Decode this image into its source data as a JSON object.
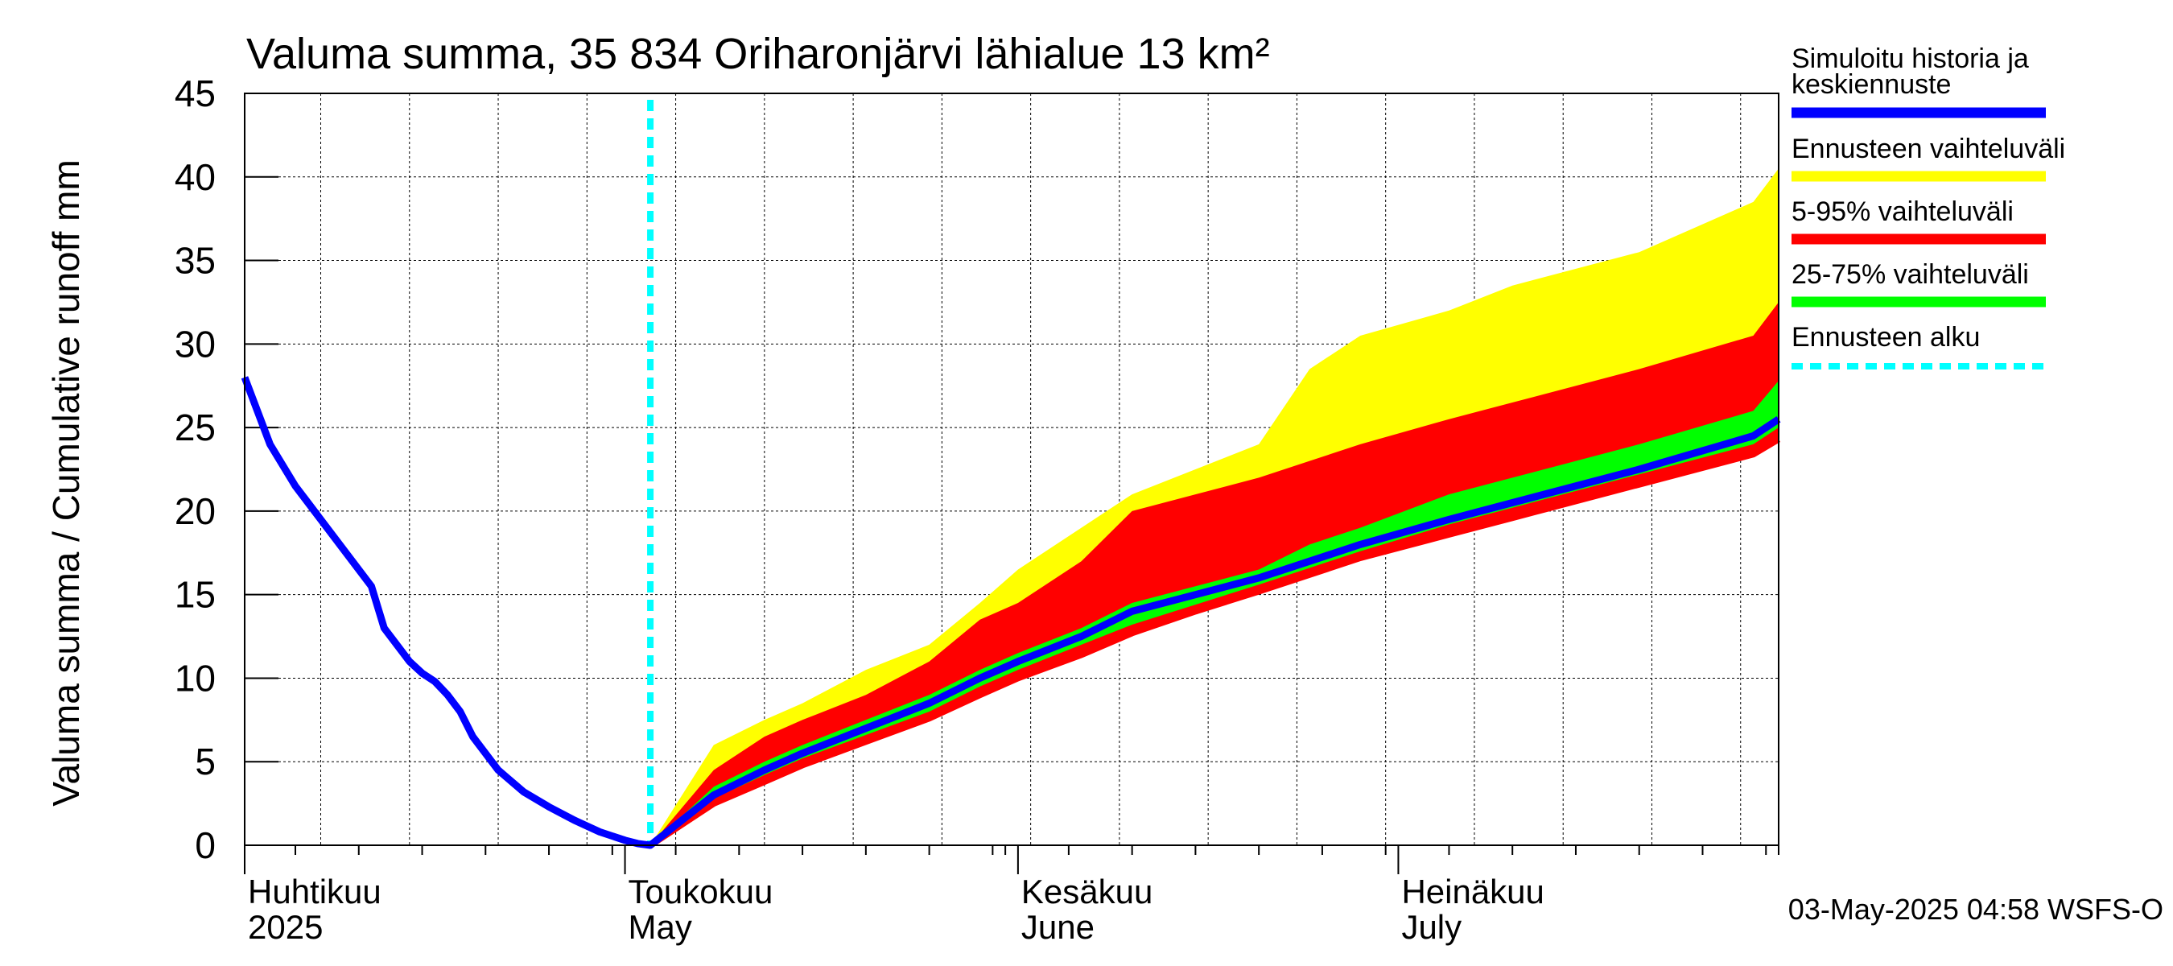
{
  "chart_data": {
    "type": "area",
    "title": "Valuma summa, 35 834 Oriharonjärvi lähialue 13 km²",
    "ylabel": "Valuma summa / Cumulative runoff     mm",
    "ylim": [
      0,
      45
    ],
    "yticks": [
      0,
      5,
      10,
      15,
      20,
      25,
      30,
      35,
      40,
      45
    ],
    "xlim": [
      "2025-04-01",
      "2025-07-31"
    ],
    "x_month_labels": [
      {
        "line1": "Huhtikuu",
        "line2": "2025",
        "date": "2025-04-01"
      },
      {
        "line1": "Toukokuu",
        "line2": "May",
        "date": "2025-05-01"
      },
      {
        "line1": "Kesäkuu",
        "line2": "June",
        "date": "2025-06-01"
      },
      {
        "line1": "Heinäkuu",
        "line2": "July",
        "date": "2025-07-01"
      }
    ],
    "grid": true,
    "forecast_start": "2025-05-03",
    "legend": [
      {
        "label": "Simuloitu historia ja keskiennuste",
        "line1": "Simuloitu historia ja",
        "line2": "keskiennuste",
        "color": "#0000ff",
        "style": "solid"
      },
      {
        "label": "Ennusteen vaihteluväli",
        "color": "#ffff00",
        "style": "solid"
      },
      {
        "label": "5-95% vaihteluväli",
        "color": "#ff0000",
        "style": "solid"
      },
      {
        "label": "25-75% vaihteluväli",
        "color": "#00ff00",
        "style": "solid"
      },
      {
        "label": "Ennusteen alku",
        "color": "#00ffff",
        "style": "dashed"
      }
    ],
    "history": {
      "name": "Simuloitu historia ja keskiennuste",
      "color": "#0000ff",
      "x": [
        "2025-04-01",
        "2025-04-03",
        "2025-04-05",
        "2025-04-07",
        "2025-04-09",
        "2025-04-11",
        "2025-04-12",
        "2025-04-14",
        "2025-04-15",
        "2025-04-16",
        "2025-04-17",
        "2025-04-18",
        "2025-04-19",
        "2025-04-21",
        "2025-04-23",
        "2025-04-25",
        "2025-04-27",
        "2025-04-29",
        "2025-05-01",
        "2025-05-02",
        "2025-05-03"
      ],
      "y": [
        28,
        24,
        21.5,
        19.5,
        17.5,
        15.5,
        13,
        11,
        10.3,
        9.8,
        9,
        8,
        6.5,
        4.5,
        3.2,
        2.3,
        1.5,
        0.8,
        0.3,
        0.1,
        0
      ]
    },
    "forecast": {
      "x": [
        "2025-05-03",
        "2025-05-08",
        "2025-05-12",
        "2025-05-15",
        "2025-05-20",
        "2025-05-25",
        "2025-05-29",
        "2025-06-01",
        "2025-06-06",
        "2025-06-10",
        "2025-06-15",
        "2025-06-20",
        "2025-06-24",
        "2025-06-28",
        "2025-07-05",
        "2025-07-10",
        "2025-07-20",
        "2025-07-29",
        "2025-07-31"
      ],
      "max": [
        0,
        6,
        7.5,
        8.5,
        10.5,
        12,
        14.5,
        16.5,
        19,
        21,
        22.5,
        24,
        28.5,
        30.5,
        32,
        33.5,
        35.5,
        38.5,
        40.5
      ],
      "p95": [
        0,
        4.5,
        6.5,
        7.5,
        9,
        11,
        13.5,
        14.5,
        17,
        20,
        21,
        22,
        23,
        24,
        25.5,
        26.5,
        28.5,
        30.5,
        32.5
      ],
      "p75": [
        0,
        3.5,
        5,
        6,
        7.5,
        9,
        10.5,
        11.5,
        13,
        14.5,
        15.5,
        16.5,
        18,
        19,
        21,
        22,
        24,
        26,
        27.8
      ],
      "median": [
        0,
        3,
        4.5,
        5.5,
        7,
        8.5,
        10,
        11,
        12.5,
        14,
        15,
        16,
        17,
        18,
        19.5,
        20.5,
        22.5,
        24.5,
        25.5
      ],
      "p25": [
        0,
        2.8,
        4.2,
        5.2,
        6.6,
        8,
        9.5,
        10.5,
        12,
        13.2,
        14.4,
        15.6,
        16.6,
        17.6,
        19.2,
        20.2,
        22.2,
        24,
        25
      ],
      "p5": [
        0,
        2.5,
        3.8,
        4.8,
        6.2,
        7.6,
        9,
        10,
        11.4,
        12.7,
        14,
        15.2,
        16.2,
        17.2,
        18.6,
        19.6,
        21.6,
        23.4,
        24.3
      ]
    },
    "footer": "03-May-2025 04:58 WSFS-O"
  }
}
